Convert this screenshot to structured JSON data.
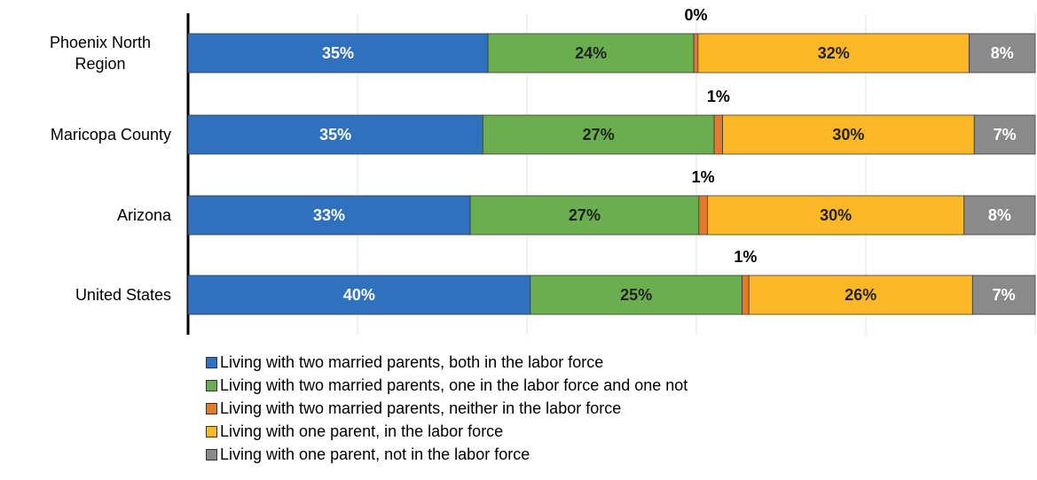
{
  "chart_data": {
    "type": "stacked-bar-horizontal",
    "categories": [
      "Phoenix North Region",
      "Maricopa County",
      "Arizona",
      "United States"
    ],
    "xlim": [
      0,
      100
    ],
    "xticks": [
      0,
      20,
      40,
      60,
      80,
      100
    ],
    "grid": true,
    "series": [
      {
        "name": "Living with two married parents, both in the labor force",
        "color": "#2f71bf",
        "values": [
          35.4,
          34.8,
          33.3,
          40.4
        ],
        "value_labels": [
          "35%",
          "35%",
          "33%",
          "40%"
        ]
      },
      {
        "name": "Living with two married parents, one in the labor force and one not",
        "color": "#6aae4f",
        "values": [
          24.3,
          27.3,
          27.0,
          25.0
        ],
        "value_labels": [
          "24%",
          "27%",
          "27%",
          "25%"
        ]
      },
      {
        "name": "Living with two married parents, neither in the labor force",
        "color": "#e4792c",
        "values": [
          0.5,
          1.0,
          1.0,
          0.8
        ],
        "value_labels": [
          "0%",
          "1%",
          "1%",
          "1%"
        ]
      },
      {
        "name": "Living with one parent, in the labor force",
        "color": "#fdb827",
        "values": [
          32.0,
          29.7,
          30.3,
          26.4
        ],
        "value_labels": [
          "32%",
          "30%",
          "30%",
          "26%"
        ]
      },
      {
        "name": "Living with one parent, not in the labor force",
        "color": "#8a8a8a",
        "values": [
          7.8,
          7.2,
          8.4,
          7.4
        ],
        "value_labels": [
          "8%",
          "7%",
          "8%",
          "7%"
        ]
      }
    ]
  }
}
